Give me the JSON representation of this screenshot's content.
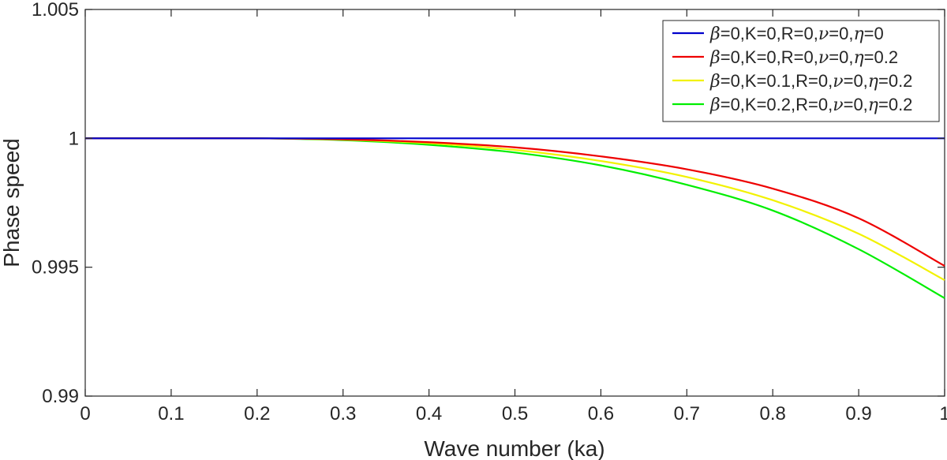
{
  "chart_data": {
    "type": "line",
    "title": "",
    "xlabel": "Wave number (ka)",
    "ylabel": "Phase speed",
    "xlim": [
      0,
      1
    ],
    "ylim": [
      0.99,
      1.005
    ],
    "xticks": [
      0,
      0.1,
      0.2,
      0.3,
      0.4,
      0.5,
      0.6,
      0.7,
      0.8,
      0.9,
      1
    ],
    "xtick_labels": [
      "0",
      "0.1",
      "0.2",
      "0.3",
      "0.4",
      "0.5",
      "0.6",
      "0.7",
      "0.8",
      "0.9",
      "1"
    ],
    "yticks": [
      0.99,
      0.995,
      1,
      1.005
    ],
    "ytick_labels": [
      "0.99",
      "0.995",
      "1",
      "1.005"
    ],
    "grid": false,
    "legend_position": "top-right",
    "x": [
      0,
      0.1,
      0.2,
      0.3,
      0.4,
      0.5,
      0.6,
      0.7,
      0.8,
      0.9,
      1.0
    ],
    "series": [
      {
        "name": "β=0,K=0,R=0,ν=0,η=0",
        "color": "#0000cc",
        "values": [
          1.0,
          1.0,
          1.0,
          1.0,
          1.0,
          1.0,
          1.0,
          1.0,
          1.0,
          1.0,
          1.0
        ]
      },
      {
        "name": "β=0,K=0,R=0,ν=0,η=0.2",
        "color": "#ee0000",
        "values": [
          1.0,
          1.0,
          1.0,
          0.99996,
          0.99985,
          0.99965,
          0.9993,
          0.9988,
          0.99805,
          0.9969,
          0.99505
        ]
      },
      {
        "name": "β=0,K=0.1,R=0,ν=0,η=0.2",
        "color": "#f2f200",
        "values": [
          1.0,
          1.0,
          1.0,
          0.99995,
          0.99981,
          0.99955,
          0.99912,
          0.9985,
          0.9976,
          0.9963,
          0.9945
        ]
      },
      {
        "name": "β=0,K=0.2,R=0,ν=0,η=0.2",
        "color": "#00ee00",
        "values": [
          1.0,
          1.0,
          1.0,
          0.99993,
          0.99975,
          0.99945,
          0.99895,
          0.9982,
          0.9972,
          0.9957,
          0.9938
        ]
      }
    ]
  }
}
